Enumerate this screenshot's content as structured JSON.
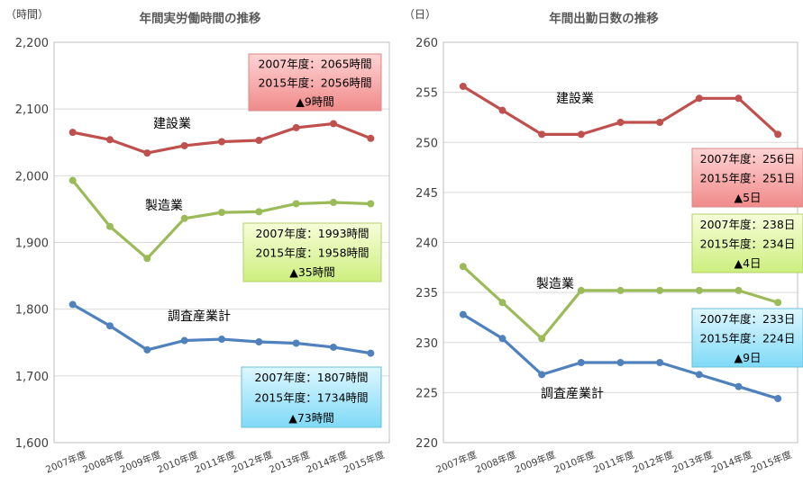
{
  "chart_data": [
    {
      "type": "line",
      "title": "年間実労働時間の推移",
      "ylabel": "（時間）",
      "ylim": [
        1600,
        2200
      ],
      "yticks": [
        "1,600",
        "1,700",
        "1,800",
        "1,900",
        "2,000",
        "2,100",
        "2,200"
      ],
      "categories": [
        "2007年度",
        "2008年度",
        "2009年度",
        "2010年度",
        "2011年度",
        "2012年度",
        "2013年度",
        "2014年度",
        "2015年度"
      ],
      "grid": true,
      "series": [
        {
          "name": "建設業",
          "color": "#c0504d",
          "values": [
            2065,
            2054,
            2034,
            2045,
            2051,
            2053,
            2072,
            2078,
            2056
          ]
        },
        {
          "name": "製造業",
          "color": "#9bbb59",
          "values": [
            1993,
            1924,
            1876,
            1936,
            1945,
            1946,
            1958,
            1960,
            1958
          ]
        },
        {
          "name": "調査産業計",
          "color": "#4f81bd",
          "values": [
            1807,
            1775,
            1739,
            1753,
            1755,
            1751,
            1749,
            1743,
            1734
          ]
        }
      ],
      "annotations": [
        {
          "series": "建設業",
          "color": "pink",
          "lines": [
            "2007年度：2065時間",
            "2015年度：2056時間",
            "▲9時間"
          ]
        },
        {
          "series": "製造業",
          "color": "lime",
          "lines": [
            "2007年度：1993時間",
            "2015年度：1958時間",
            "▲35時間"
          ]
        },
        {
          "series": "調査産業計",
          "color": "cyan",
          "lines": [
            "2007年度：1807時間",
            "2015年度：1734時間",
            "▲73時間"
          ]
        }
      ]
    },
    {
      "type": "line",
      "title": "年間出勤日数の推移",
      "ylabel": "（日）",
      "ylim": [
        220,
        260
      ],
      "yticks": [
        "220",
        "225",
        "230",
        "235",
        "240",
        "245",
        "250",
        "255",
        "260"
      ],
      "categories": [
        "2007年度",
        "2008年度",
        "2009年度",
        "2010年度",
        "2011年度",
        "2012年度",
        "2013年度",
        "2014年度",
        "2015年度"
      ],
      "grid": true,
      "series": [
        {
          "name": "建設業",
          "color": "#c0504d",
          "values": [
            255.6,
            253.2,
            250.8,
            250.8,
            252.0,
            252.0,
            254.4,
            254.4,
            250.8
          ]
        },
        {
          "name": "製造業",
          "color": "#9bbb59",
          "values": [
            237.6,
            234.0,
            230.4,
            235.2,
            235.2,
            235.2,
            235.2,
            235.2,
            234.0
          ]
        },
        {
          "name": "調査産業計",
          "color": "#4f81bd",
          "values": [
            232.8,
            230.4,
            226.8,
            228.0,
            228.0,
            228.0,
            226.8,
            225.6,
            224.4
          ]
        }
      ],
      "annotations": [
        {
          "series": "建設業",
          "color": "pink",
          "lines": [
            "2007年度：256日",
            "2015年度：251日",
            "▲5日"
          ]
        },
        {
          "series": "製造業",
          "color": "lime",
          "lines": [
            "2007年度：238日",
            "2015年度：234日",
            "▲4日"
          ]
        },
        {
          "series": "調査産業計",
          "color": "cyan",
          "lines": [
            "2007年度：233日",
            "2015年度：224日",
            "▲9日"
          ]
        }
      ]
    }
  ]
}
